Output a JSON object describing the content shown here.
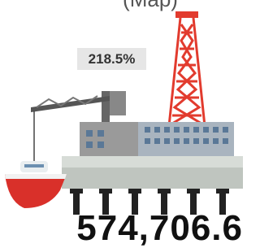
{
  "header": {
    "title": "(Map)"
  },
  "badge": {
    "text": "218.5%"
  },
  "value": {
    "text": "574,706.6"
  }
}
